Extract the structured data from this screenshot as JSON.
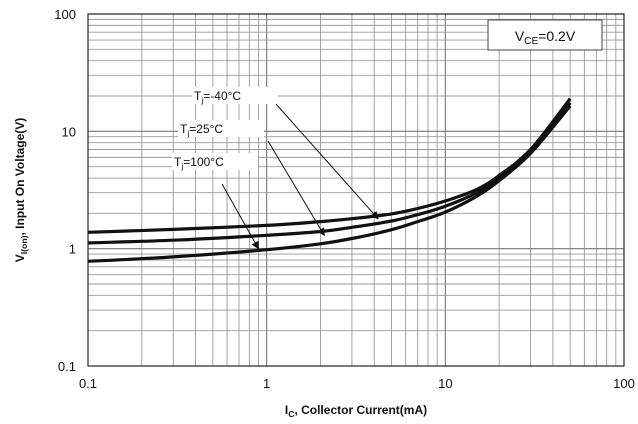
{
  "chart_data": {
    "type": "line",
    "x_scale": "log",
    "y_scale": "log",
    "xlim": [
      0.1,
      100
    ],
    "ylim": [
      0.1,
      100
    ],
    "grid": true,
    "legend": "none",
    "x_ticks": [
      "0.1",
      "1",
      "10",
      "100"
    ],
    "y_ticks": [
      "0.1",
      "1",
      "10",
      "100"
    ],
    "xlabel": {
      "main": "I",
      "sub": "C",
      "rest": ", Collector Current(mA)"
    },
    "ylabel": {
      "main": "V",
      "sub": "I(on)",
      "rest": ", Input On Voltage(V)"
    },
    "condition": {
      "main": "V",
      "sub": "CE",
      "rest": "=0.2V"
    },
    "series": [
      {
        "label": {
          "main": "T",
          "sub": "j",
          "rest": "=-40°C"
        },
        "arrow_target": {
          "x": 4.2,
          "y": 1.8
        },
        "points": [
          [
            0.1,
            1.38
          ],
          [
            0.3,
            1.46
          ],
          [
            1,
            1.58
          ],
          [
            2,
            1.7
          ],
          [
            3,
            1.8
          ],
          [
            5,
            1.98
          ],
          [
            7,
            2.2
          ],
          [
            10,
            2.55
          ],
          [
            15,
            3.2
          ],
          [
            20,
            4.2
          ],
          [
            30,
            7.0
          ],
          [
            50,
            19.0
          ]
        ]
      },
      {
        "label": {
          "main": "T",
          "sub": "j",
          "rest": "=25°C"
        },
        "arrow_target": {
          "x": 2.1,
          "y": 1.3
        },
        "points": [
          [
            0.1,
            1.12
          ],
          [
            0.3,
            1.18
          ],
          [
            1,
            1.3
          ],
          [
            2,
            1.4
          ],
          [
            3,
            1.52
          ],
          [
            5,
            1.72
          ],
          [
            7,
            1.95
          ],
          [
            10,
            2.3
          ],
          [
            15,
            3.0
          ],
          [
            20,
            4.0
          ],
          [
            30,
            6.8
          ],
          [
            50,
            17.5
          ]
        ]
      },
      {
        "label": {
          "main": "T",
          "sub": "j",
          "rest": "=100°C"
        },
        "arrow_target": {
          "x": 0.9,
          "y": 1.0
        },
        "points": [
          [
            0.1,
            0.78
          ],
          [
            0.3,
            0.85
          ],
          [
            1,
            0.98
          ],
          [
            2,
            1.1
          ],
          [
            3,
            1.22
          ],
          [
            5,
            1.45
          ],
          [
            7,
            1.7
          ],
          [
            10,
            2.05
          ],
          [
            15,
            2.8
          ],
          [
            20,
            3.8
          ],
          [
            30,
            6.5
          ],
          [
            50,
            16.5
          ]
        ]
      }
    ]
  }
}
